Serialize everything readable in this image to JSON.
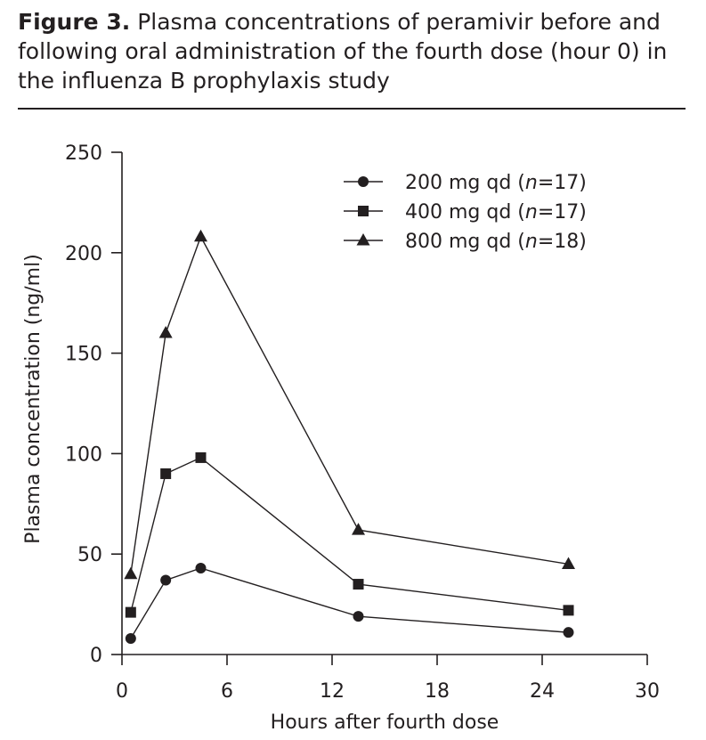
{
  "figure": {
    "label": "Figure 3.",
    "caption": "Plasma concentrations of peramivir before and following oral administration of the fourth dose (hour 0) in the influenza B prophylaxis study"
  },
  "chart_data": {
    "type": "line",
    "xlabel": "Hours after fourth dose",
    "ylabel": "Plasma concentration (ng/ml)",
    "xlim": [
      0,
      30
    ],
    "ylim": [
      0,
      250
    ],
    "xticks": [
      0,
      6,
      12,
      18,
      24,
      30
    ],
    "yticks": [
      0,
      50,
      100,
      150,
      200,
      250
    ],
    "grid": false,
    "legend_position": "top-right",
    "colors": {
      "ink": "#231f20"
    },
    "series": [
      {
        "name_prefix": "200 mg qd (",
        "n_symbol": "n",
        "name_suffix": "=17)",
        "marker": "circle",
        "x": [
          0.5,
          2.5,
          4.5,
          13.5,
          25.5
        ],
        "y": [
          8,
          37,
          43,
          19,
          11
        ]
      },
      {
        "name_prefix": "400 mg qd (",
        "n_symbol": "n",
        "name_suffix": "=17)",
        "marker": "square",
        "x": [
          0.5,
          2.5,
          4.5,
          13.5,
          25.5
        ],
        "y": [
          21,
          90,
          98,
          35,
          22
        ]
      },
      {
        "name_prefix": "800 mg qd (",
        "n_symbol": "n",
        "name_suffix": "=18)",
        "marker": "triangle",
        "x": [
          0.5,
          2.5,
          4.5,
          13.5,
          25.5
        ],
        "y": [
          40,
          160,
          208,
          62,
          45
        ]
      }
    ]
  }
}
